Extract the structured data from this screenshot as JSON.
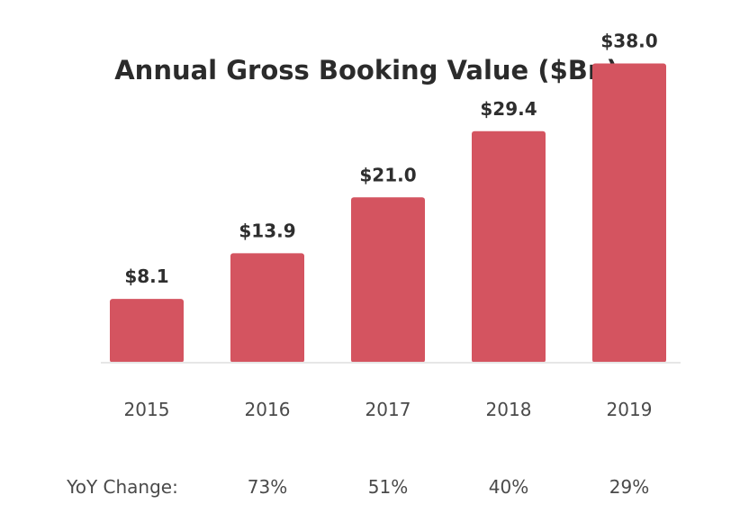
{
  "chart_data": {
    "type": "bar",
    "title": "Annual Gross Booking Value ($Bn)",
    "categories": [
      "2015",
      "2016",
      "2017",
      "2018",
      "2019"
    ],
    "values": [
      8.1,
      13.9,
      21.0,
      29.4,
      38.0
    ],
    "data_labels": [
      "$8.1",
      "$13.9",
      "$21.0",
      "$29.4",
      "$38.0"
    ],
    "ylim": [
      0,
      40
    ],
    "grid": false,
    "legend": "none",
    "bar_color": "#d45460",
    "yoy": {
      "label": "YoY Change:",
      "values": [
        "73%",
        "51%",
        "40%",
        "29%"
      ]
    }
  }
}
